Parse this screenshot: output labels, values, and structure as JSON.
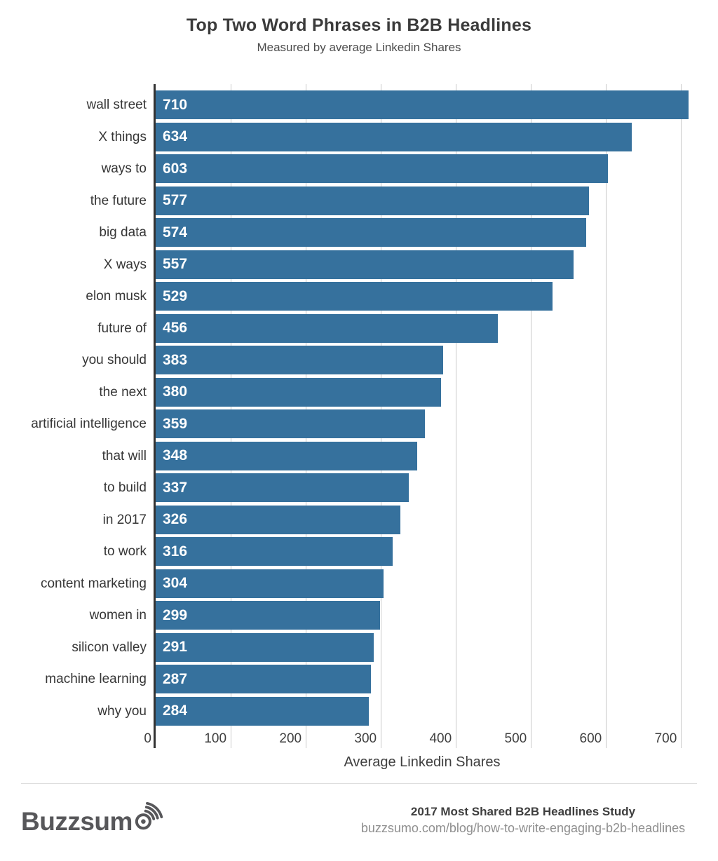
{
  "chart_data": {
    "type": "bar",
    "orientation": "horizontal",
    "title": "Top Two Word Phrases in B2B Headlines",
    "subtitle": "Measured by average Linkedin Shares",
    "categories": [
      "wall street",
      "X things",
      "ways to",
      "the future",
      "big data",
      "X ways",
      "elon musk",
      "future of",
      "you should",
      "the next",
      "artificial intelligence",
      "that will",
      "to build",
      "in 2017",
      "to work",
      "content marketing",
      "women in",
      "silicon valley",
      "machine learning",
      "why you"
    ],
    "values": [
      710,
      634,
      603,
      577,
      574,
      557,
      529,
      456,
      383,
      380,
      359,
      348,
      337,
      326,
      316,
      304,
      299,
      291,
      287,
      284
    ],
    "xlabel": "Average Linkedin Shares",
    "xlim": [
      0,
      710
    ],
    "xticks": [
      0,
      100,
      200,
      300,
      400,
      500,
      600,
      700
    ],
    "grid": true,
    "legend": "none",
    "bar_color": "#36719d",
    "value_label_color": "#ffffff",
    "gridline_color": "#c9c9c9",
    "axis_line_color": "#333333"
  },
  "footer": {
    "logo_text": "Buzzsum",
    "logo_icon": "broadcast-o-icon",
    "study_line": "2017 Most Shared B2B Headlines Study",
    "url_line": "buzzsumo.com/blog/how-to-write-engaging-b2b-headlines"
  }
}
